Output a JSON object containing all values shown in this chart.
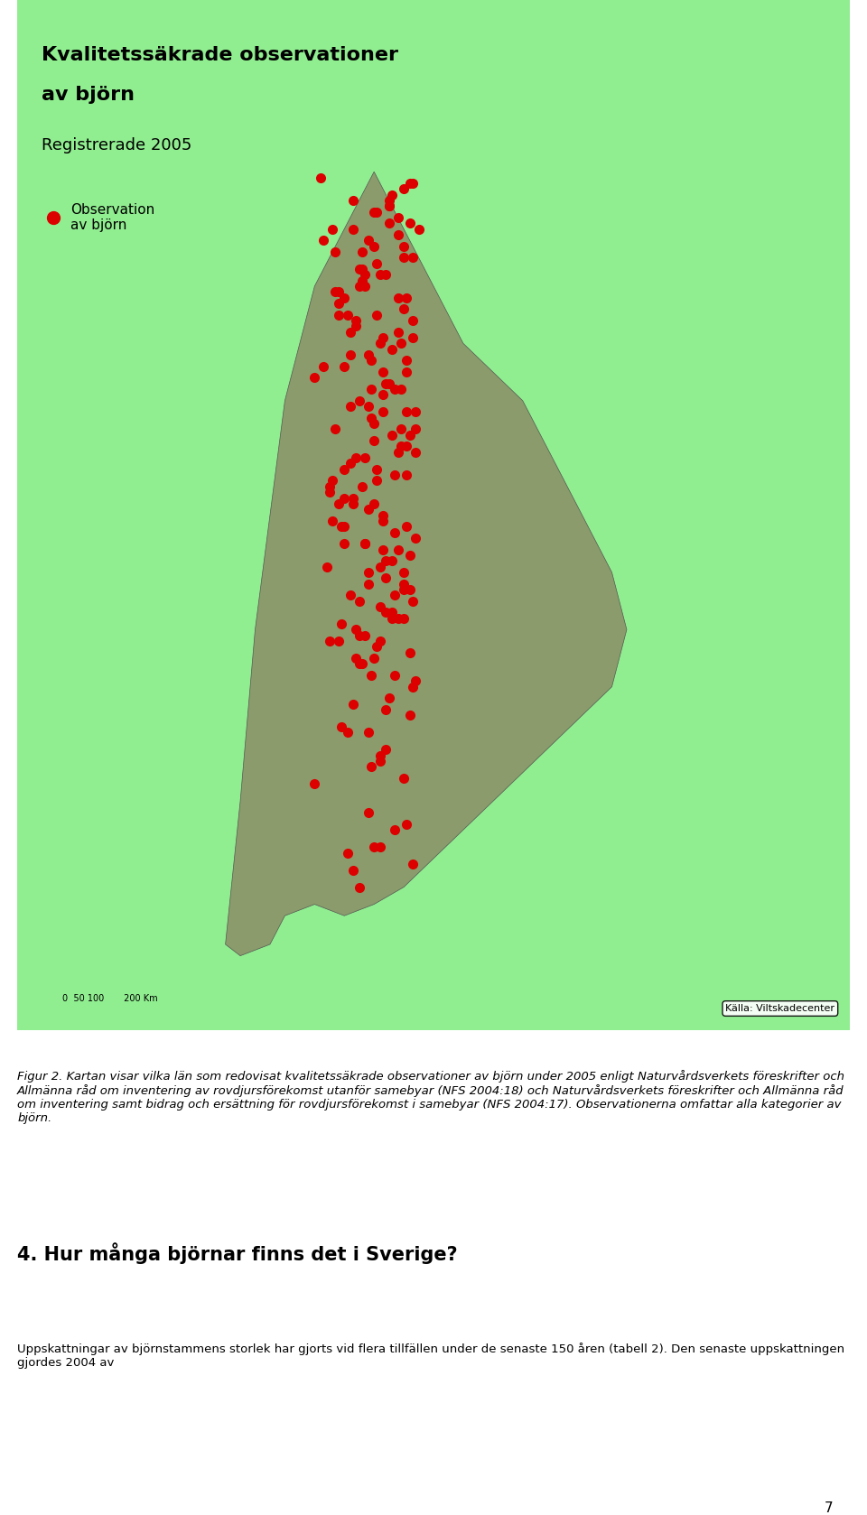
{
  "title_line1": "Kvalitetssäkrade observationer",
  "title_line2": "av björn",
  "subtitle": "Registrerade 2005",
  "legend_label": "Observation\nav björn",
  "source_text": "Källa: Viltskadecenter",
  "scale_text": "0  50 100       200 Km",
  "figure_caption": "Figur 2. Kartan visar vilka län som redovisat kvalitetssäkrade observationer av björn under 2005 enligt Naturvårdsverkets föreskrifter och Allmänna råd om inventering av rovdjursförekomst utanför samebyar (NFS 2004:18) och Naturvårdsverkets föreskrifter och Allmänna råd om inventering samt bidrag och ersättning för rovdjursförekomst i samebyar (NFS 2004:17). Observationerna omfattar alla kategorier av björn.",
  "section_title": "4. Hur många björnar finns det i Sverige?",
  "section_text": "Uppskattningar av björnstammens storlek har gjorts vid flera tillfällen under de senaste 150 åren (tabell 2). Den senaste uppskattningen gjordes 2004 av",
  "page_number": "7",
  "map_bg_color": "#87CEEB",
  "land_color_neighbor": "#90EE90",
  "land_color_sweden": "#8B9B6B",
  "border_color": "#555555",
  "water_color": "#ADD8E6",
  "obs_color": "#DD0000",
  "obs_size": 8,
  "bear_observations_lon": [
    16.5,
    16.8,
    17.2,
    17.5,
    17.0,
    16.2,
    15.8,
    16.0,
    15.5,
    15.0,
    14.8,
    15.2,
    15.8,
    16.3,
    16.7,
    17.1,
    17.4,
    16.9,
    16.1,
    15.6,
    15.3,
    14.9,
    15.7,
    16.4,
    17.0,
    17.3,
    16.8,
    16.2,
    15.4,
    15.9,
    16.6,
    17.2,
    16.0,
    15.5,
    14.7,
    15.1,
    16.3,
    17.1,
    16.5,
    15.8,
    16.9,
    17.4,
    16.7,
    15.3,
    14.6,
    15.0,
    16.2,
    17.0,
    16.4,
    15.7,
    16.1,
    16.8,
    17.3,
    15.6,
    14.8,
    15.4,
    16.6,
    17.1,
    16.3,
    15.9,
    16.0,
    15.2,
    14.5,
    15.8,
    16.7,
    17.2,
    16.4,
    15.5,
    14.9,
    16.1,
    17.0,
    16.5,
    15.3,
    14.7,
    15.7,
    16.8,
    17.3,
    16.2,
    15.0,
    16.9,
    17.4,
    16.6,
    15.4,
    14.6,
    16.0,
    17.1,
    16.3,
    15.8,
    16.7,
    17.0,
    14.8,
    15.6,
    16.5,
    17.2,
    15.1,
    16.4,
    15.9,
    16.2,
    17.3,
    15.5,
    14.3,
    16.1,
    15.7,
    17.0,
    16.8,
    15.2,
    14.0,
    15.5,
    16.0,
    17.1,
    15.0,
    14.5,
    16.3,
    17.4,
    16.6,
    15.8,
    16.2,
    15.4,
    17.2,
    16.7,
    14.2,
    15.3,
    16.5,
    17.0,
    15.6,
    14.8,
    16.1,
    17.3,
    15.9,
    16.4,
    15.2,
    14.7,
    16.8,
    17.1,
    15.0,
    16.3,
    15.7,
    14.4,
    17.2,
    16.6,
    15.5,
    16.0,
    17.4,
    15.3,
    14.9,
    16.2,
    17.0,
    15.8,
    16.7,
    15.1,
    17.3,
    16.5,
    14.6,
    15.6,
    16.4,
    17.1,
    15.4,
    16.9,
    14.3,
    15.9,
    16.3,
    17.2,
    15.7,
    16.1,
    14.8,
    15.0,
    16.8,
    17.0,
    15.2,
    16.6,
    14.5,
    15.5,
    17.3,
    16.4,
    15.8,
    16.2,
    14.0,
    17.1,
    16.0,
    15.3
  ],
  "bear_observations_lat": [
    68.5,
    68.2,
    68.8,
    68.0,
    67.5,
    67.2,
    67.8,
    68.3,
    67.0,
    66.8,
    66.5,
    66.2,
    65.8,
    65.5,
    65.2,
    64.8,
    64.5,
    64.2,
    63.8,
    63.5,
    63.2,
    62.8,
    62.5,
    62.2,
    61.8,
    61.5,
    61.2,
    60.8,
    60.5,
    60.2,
    68.6,
    68.1,
    67.7,
    67.3,
    66.9,
    66.5,
    66.1,
    65.7,
    65.3,
    64.9,
    64.5,
    64.1,
    63.7,
    63.3,
    62.9,
    62.5,
    62.1,
    61.7,
    61.3,
    60.9,
    68.3,
    67.9,
    67.5,
    67.1,
    66.7,
    66.3,
    65.9,
    65.5,
    65.1,
    64.7,
    64.3,
    63.9,
    63.5,
    63.1,
    62.7,
    62.3,
    61.9,
    61.5,
    61.1,
    60.7,
    68.7,
    68.4,
    68.0,
    67.6,
    67.2,
    66.8,
    66.4,
    66.0,
    65.6,
    65.2,
    64.8,
    64.4,
    64.0,
    63.6,
    63.2,
    62.8,
    62.4,
    62.0,
    61.6,
    61.2,
    60.8,
    60.4,
    59.8,
    59.5,
    59.2,
    58.9,
    58.6,
    57.2,
    56.9,
    56.5,
    67.8,
    67.4,
    67.0,
    66.6,
    66.2,
    65.8,
    65.4,
    65.0,
    64.6,
    64.2,
    63.8,
    63.4,
    63.0,
    62.6,
    62.2,
    61.8,
    61.4,
    61.0,
    60.6,
    60.2,
    68.9,
    68.5,
    68.1,
    67.7,
    67.3,
    66.9,
    66.5,
    66.1,
    65.7,
    65.3,
    64.9,
    64.5,
    64.1,
    63.7,
    63.3,
    62.9,
    62.5,
    62.1,
    61.7,
    61.3,
    60.9,
    60.5,
    60.1,
    59.7,
    59.3,
    58.8,
    58.4,
    57.8,
    57.5,
    57.1,
    68.8,
    68.4,
    68.0,
    67.6,
    67.2,
    66.8,
    66.4,
    66.0,
    65.6,
    65.2,
    64.8,
    64.4,
    64.0,
    63.6,
    63.2,
    62.8,
    62.4,
    62.0,
    61.6,
    61.2,
    60.8,
    60.4,
    60.0,
    59.6,
    59.2,
    58.7,
    58.3,
    57.6,
    57.2,
    56.8
  ]
}
